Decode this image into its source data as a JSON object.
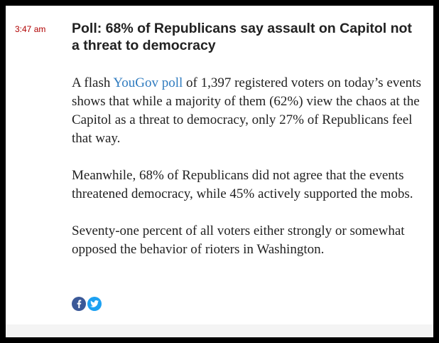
{
  "post": {
    "timestamp": "3:47 am",
    "headline": "Poll: 68% of Republicans say assault on Capitol not a threat to democracy",
    "paragraphs": {
      "p1_link": "YouGov poll",
      "p1_before": "A flash ",
      "p1_after": " of 1,397 registered voters on today’s events shows that while a majority of them (62%) view the chaos at the Capitol as a threat to democracy, only 27% of Republicans feel that way.",
      "p2": "Meanwhile, 68% of Republicans did not agree that the events threatened democracy, while 45% actively supported the mobs.",
      "p3": "Seventy-one percent of all voters either strongly or somewhat opposed the behavior of rioters in Washington."
    }
  },
  "share": {
    "facebook_icon": "facebook-icon",
    "twitter_icon": "twitter-icon"
  },
  "colors": {
    "timestamp": "#b00000",
    "link": "#2f7bbf",
    "facebook": "#3b5998",
    "twitter": "#1da1f2"
  }
}
